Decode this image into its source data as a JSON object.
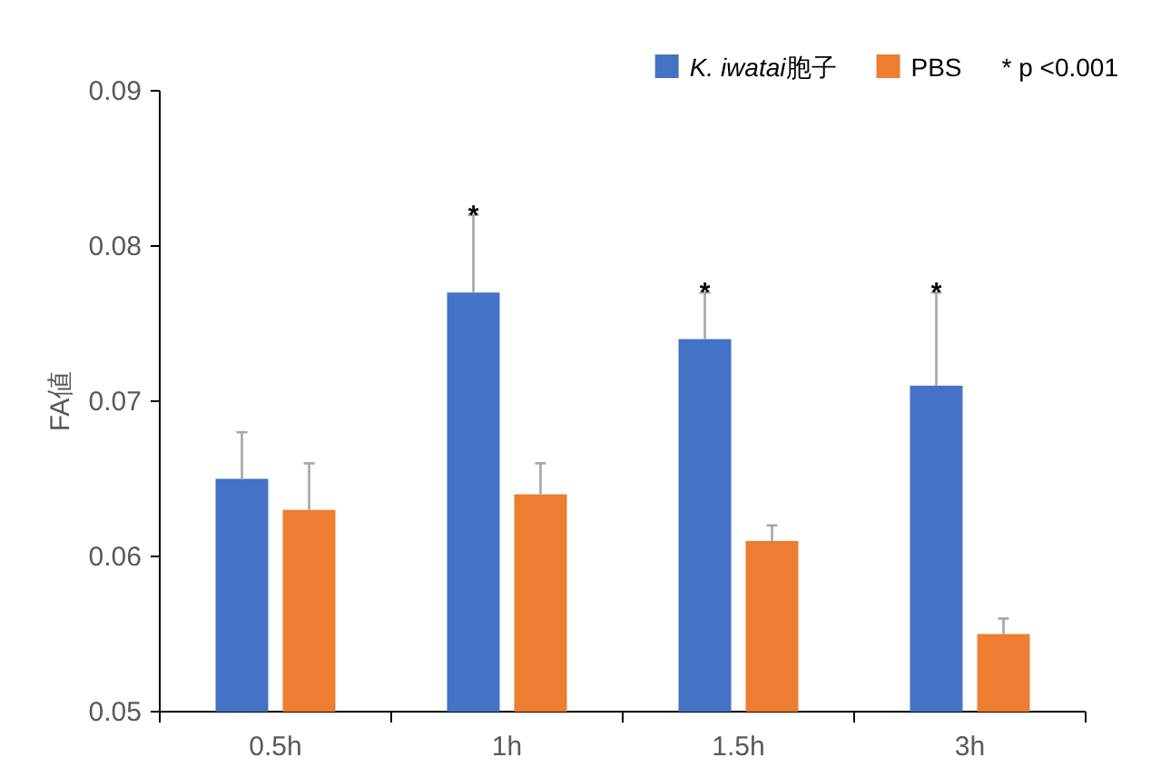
{
  "chart_data": {
    "type": "bar",
    "ylabel": "FA値",
    "categories": [
      "0.5h",
      "1h",
      "1.5h",
      "3h"
    ],
    "series": [
      {
        "name": "K. iwatai胞子",
        "color": "#4472c4",
        "values": [
          0.065,
          0.077,
          0.074,
          0.071
        ],
        "value_labels": [
          null,
          "*",
          "*",
          "*"
        ],
        "errors": [
          [
            0.065,
            0.068
          ],
          [
            0.077,
            0.082
          ],
          [
            0.074,
            0.077
          ],
          [
            0.071,
            0.077
          ]
        ]
      },
      {
        "name": "PBS",
        "color": "#ed7d31",
        "values": [
          0.063,
          0.064,
          0.061,
          0.055
        ],
        "errors": [
          [
            0.063,
            0.066
          ],
          [
            0.064,
            0.066
          ],
          [
            0.061,
            0.062
          ],
          [
            0.055,
            0.056
          ]
        ]
      }
    ],
    "ylim": [
      0.05,
      0.09
    ],
    "yticks": [
      0.05,
      0.06,
      0.07,
      0.08,
      0.09
    ],
    "legend": "top right",
    "annotations": [
      "* p <0.001"
    ]
  }
}
